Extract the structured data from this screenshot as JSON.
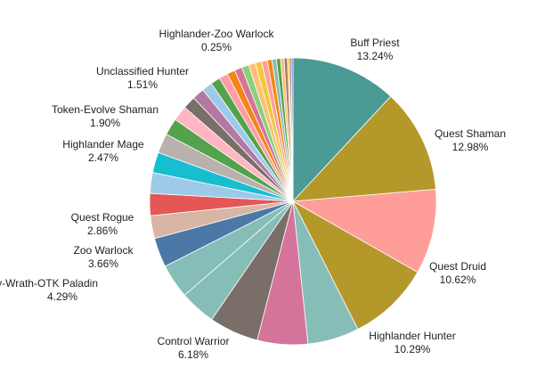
{
  "chart_data": {
    "type": "pie",
    "start_angle_deg": 0,
    "direction": "clockwise",
    "slices": [
      {
        "label": "Buff Priest",
        "value": 13.24,
        "display": "13.24%",
        "color": "#4A9A96",
        "show_label": true
      },
      {
        "label": "Quest Shaman",
        "value": 12.98,
        "display": "12.98%",
        "color": "#B5982A",
        "show_label": true
      },
      {
        "label": "Quest Druid",
        "value": 10.62,
        "display": "10.62%",
        "color": "#FF9E99",
        "show_label": true
      },
      {
        "label": "Highlander Hunter",
        "value": 10.29,
        "display": "10.29%",
        "color": "#B5982A",
        "show_label": true
      },
      {
        "label": "",
        "value": 6.45,
        "display": "",
        "color": "#86BDB7",
        "show_label": false
      },
      {
        "label": "",
        "value": 6.3,
        "display": "",
        "color": "#D4749B",
        "show_label": false
      },
      {
        "label": "Control Warrior",
        "value": 6.18,
        "display": "6.18%",
        "color": "#7A6E69",
        "show_label": true
      },
      {
        "label": "",
        "value": 4.5,
        "display": "",
        "color": "#86BDB7",
        "show_label": false
      },
      {
        "label": "Holy-Wrath-OTK Paladin",
        "value": 4.29,
        "display": "4.29%",
        "color": "#86BDB7",
        "show_label": true
      },
      {
        "label": "Zoo Warlock",
        "value": 3.66,
        "display": "3.66%",
        "color": "#4C78A8",
        "show_label": true
      },
      {
        "label": "Quest Rogue",
        "value": 2.86,
        "display": "2.86%",
        "color": "#D8B5A5",
        "show_label": true
      },
      {
        "label": "",
        "value": 2.75,
        "display": "",
        "color": "#E45756",
        "show_label": false
      },
      {
        "label": "",
        "value": 2.6,
        "display": "",
        "color": "#9ECAE9",
        "show_label": false
      },
      {
        "label": "",
        "value": 2.55,
        "display": "",
        "color": "#17BECF",
        "show_label": false
      },
      {
        "label": "Highlander Mage",
        "value": 2.47,
        "display": "2.47%",
        "color": "#BAB0AC",
        "show_label": true
      },
      {
        "label": "",
        "value": 2.1,
        "display": "",
        "color": "#54A24B",
        "show_label": false
      },
      {
        "label": "Token-Evolve Shaman",
        "value": 1.9,
        "display": "1.90%",
        "color": "#FFB6C1",
        "show_label": true
      },
      {
        "label": "",
        "value": 1.6,
        "display": "",
        "color": "#7A6E69",
        "show_label": false
      },
      {
        "label": "Unclassified Hunter",
        "value": 1.51,
        "display": "1.51%",
        "color": "#B279A2",
        "show_label": true
      },
      {
        "label": "",
        "value": 1.3,
        "display": "",
        "color": "#9ECAE9",
        "show_label": false
      },
      {
        "label": "",
        "value": 1.2,
        "display": "",
        "color": "#54A24B",
        "show_label": false
      },
      {
        "label": "",
        "value": 1.1,
        "display": "",
        "color": "#FF9DA6",
        "show_label": false
      },
      {
        "label": "",
        "value": 1.0,
        "display": "",
        "color": "#F58518",
        "show_label": false
      },
      {
        "label": "",
        "value": 0.95,
        "display": "",
        "color": "#D4749B",
        "show_label": false
      },
      {
        "label": "",
        "value": 0.9,
        "display": "",
        "color": "#88D27A",
        "show_label": false
      },
      {
        "label": "",
        "value": 0.85,
        "display": "",
        "color": "#FFBF79",
        "show_label": false
      },
      {
        "label": "",
        "value": 0.8,
        "display": "",
        "color": "#EECA3B",
        "show_label": false
      },
      {
        "label": "",
        "value": 0.7,
        "display": "",
        "color": "#FF9E99",
        "show_label": false
      },
      {
        "label": "",
        "value": 0.6,
        "display": "",
        "color": "#F58518",
        "show_label": false
      },
      {
        "label": "",
        "value": 0.55,
        "display": "",
        "color": "#86BDB7",
        "show_label": false
      },
      {
        "label": "",
        "value": 0.5,
        "display": "",
        "color": "#54A24B",
        "show_label": false
      },
      {
        "label": "",
        "value": 0.45,
        "display": "",
        "color": "#FFBF79",
        "show_label": false
      },
      {
        "label": "",
        "value": 0.4,
        "display": "",
        "color": "#9D755D",
        "show_label": false
      },
      {
        "label": "Highlander-Zoo Warlock",
        "value": 0.25,
        "display": "0.25%",
        "color": "#EECA3B",
        "show_label": true
      },
      {
        "label": "",
        "value": 0.25,
        "display": "",
        "color": "#B279A2",
        "show_label": false
      },
      {
        "label": "",
        "value": 0.2,
        "display": "",
        "color": "#4C78A8",
        "show_label": false
      }
    ]
  }
}
